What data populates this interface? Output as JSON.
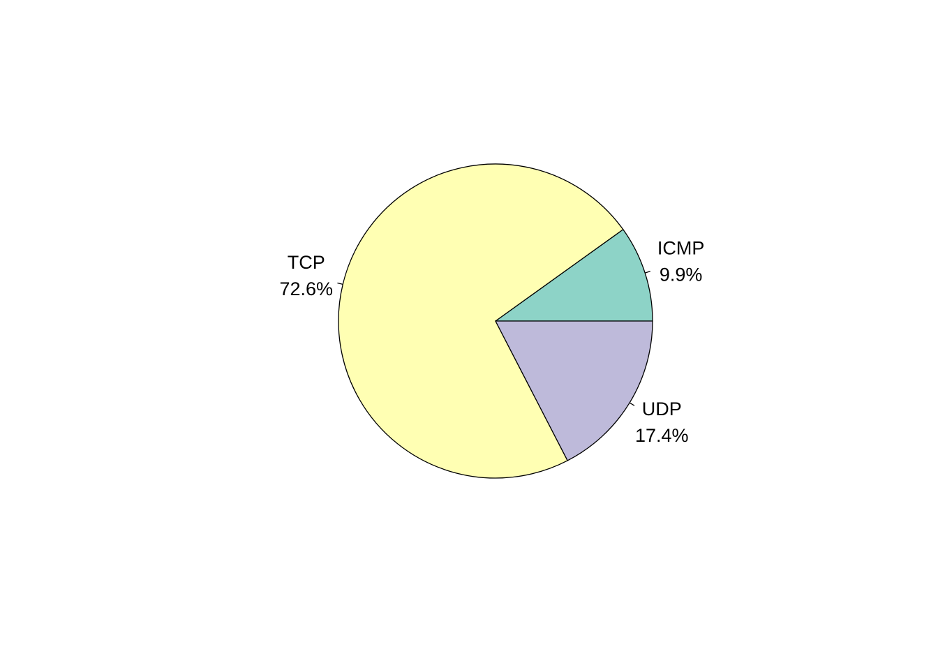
{
  "chart_data": {
    "type": "pie",
    "title": "",
    "start_angle_deg": 0,
    "direction": "counterclockwise",
    "slices": [
      {
        "label": "ICMP",
        "percent_label": "9.9%",
        "value": 9.9,
        "color": "#8DD3C7"
      },
      {
        "label": "TCP",
        "percent_label": "72.6%",
        "value": 72.6,
        "color": "#FFFFB3"
      },
      {
        "label": "UDP",
        "percent_label": "17.4%",
        "value": 17.4,
        "color": "#BEBADA"
      }
    ]
  }
}
